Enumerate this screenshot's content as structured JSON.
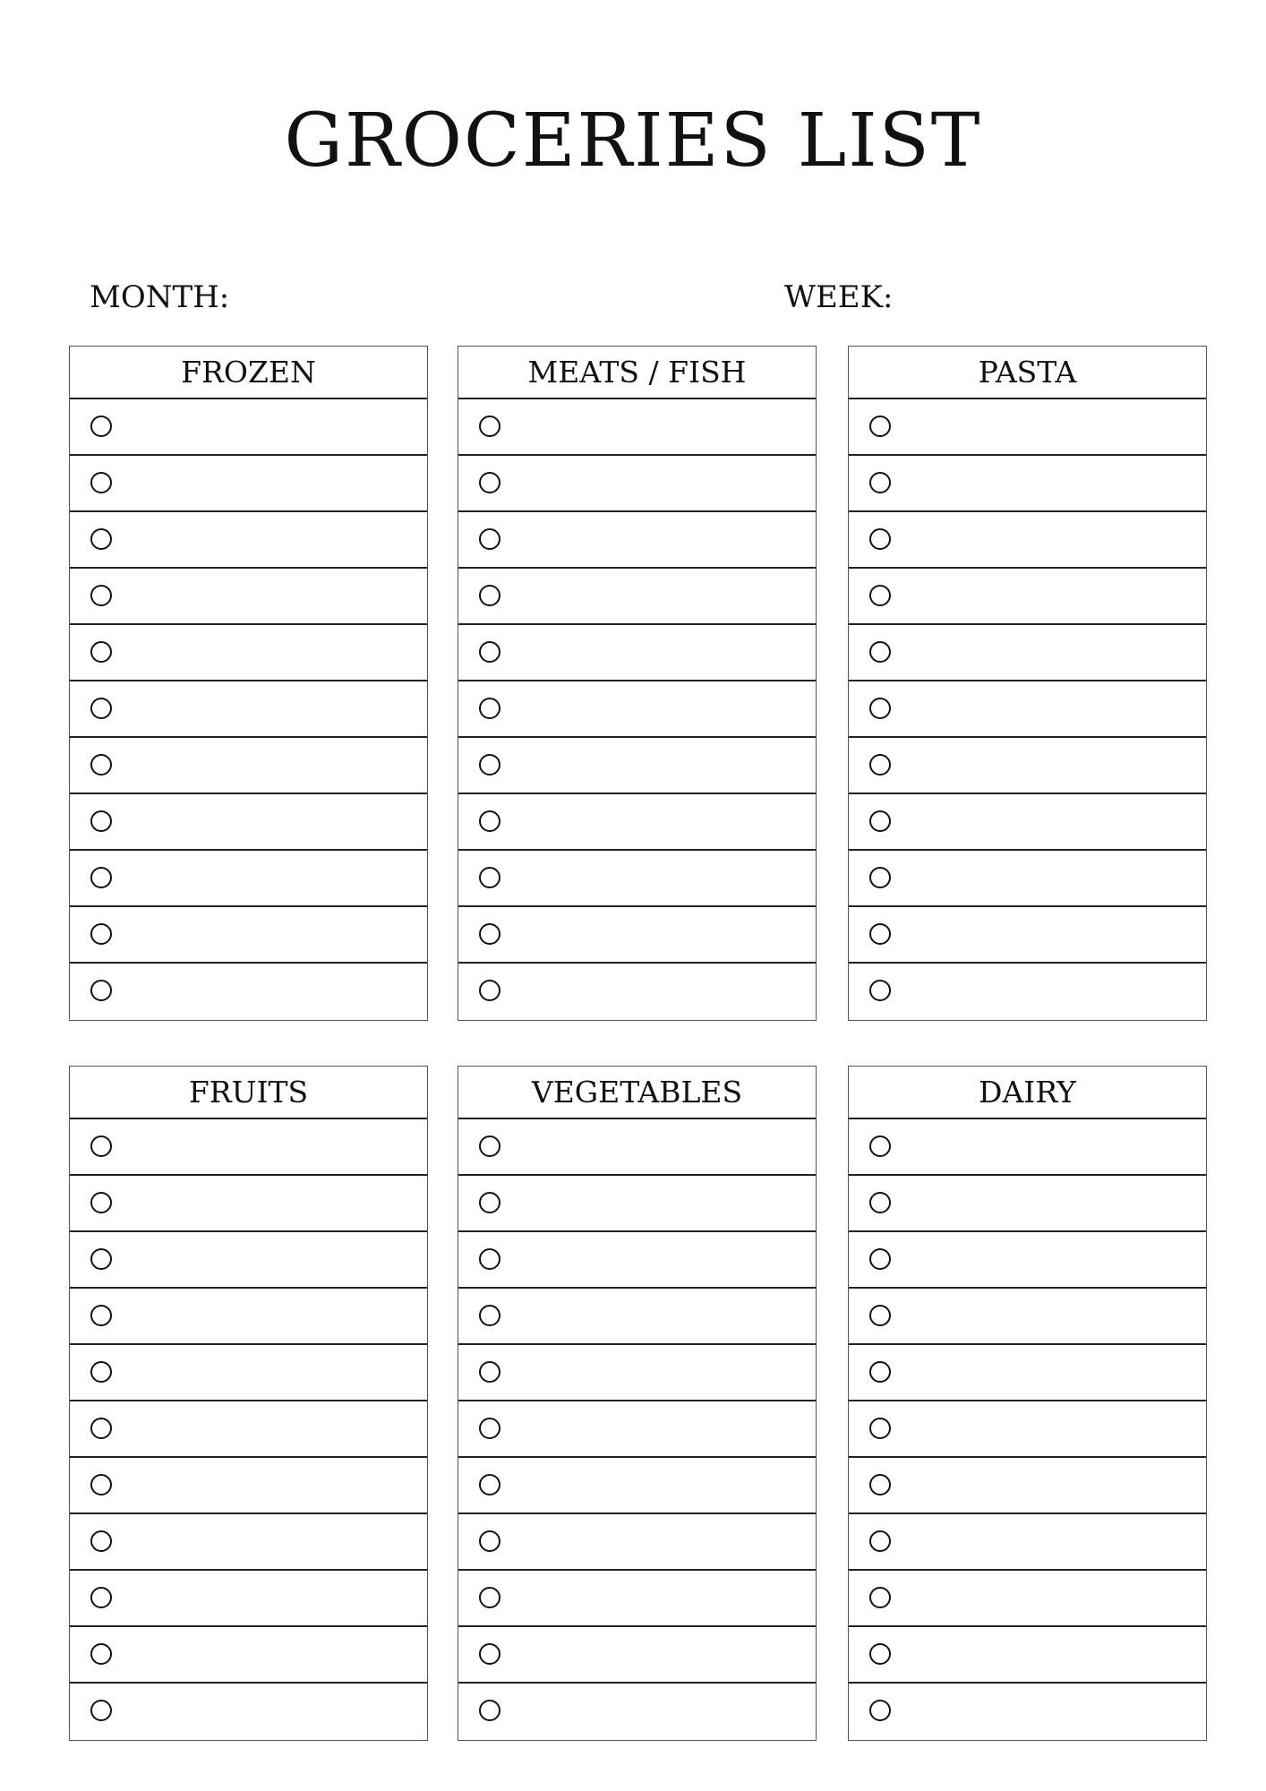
{
  "title": "GROCERIES LIST",
  "month_label": "MONTH:",
  "week_label": "WEEK:",
  "rows_per_section": 11,
  "sections": [
    {
      "title": "FROZEN"
    },
    {
      "title": "MEATS / FISH"
    },
    {
      "title": "PASTA"
    },
    {
      "title": "FRUITS"
    },
    {
      "title": "VEGETABLES"
    },
    {
      "title": "DAIRY"
    }
  ]
}
